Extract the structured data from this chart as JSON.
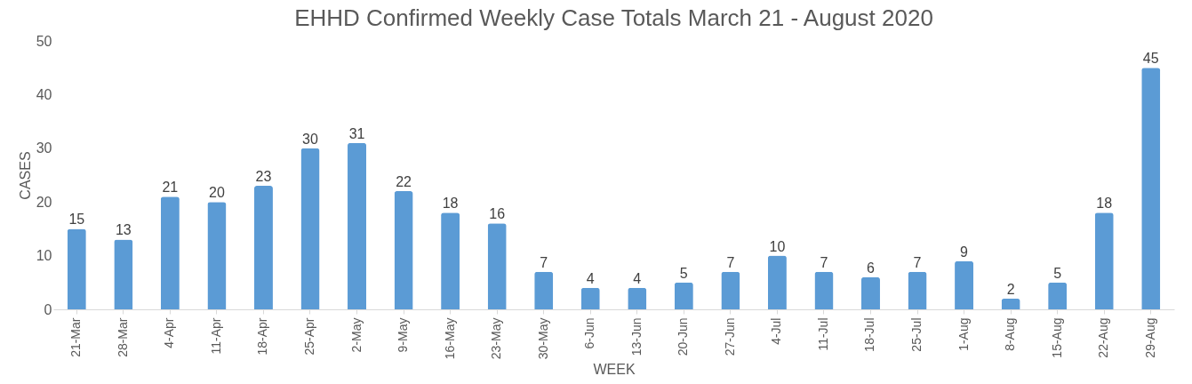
{
  "chart_data": {
    "type": "bar",
    "title": "EHHD Confirmed Weekly Case Totals March 21 - August 2020",
    "xlabel": "WEEK",
    "ylabel": "CASES",
    "categories": [
      "21-Mar",
      "28-Mar",
      "4-Apr",
      "11-Apr",
      "18-Apr",
      "25-Apr",
      "2-May",
      "9-May",
      "16-May",
      "23-May",
      "30-May",
      "6-Jun",
      "13-Jun",
      "20-Jun",
      "27-Jun",
      "4-Jul",
      "11-Jul",
      "18-Jul",
      "25-Jul",
      "1-Aug",
      "8-Aug",
      "15-Aug",
      "22-Aug",
      "29-Aug"
    ],
    "values": [
      15,
      13,
      21,
      20,
      23,
      30,
      31,
      22,
      18,
      16,
      7,
      4,
      4,
      5,
      7,
      10,
      7,
      6,
      7,
      9,
      2,
      5,
      18,
      45
    ],
    "color": "#5b9bd5",
    "ylim": [
      0,
      50
    ],
    "yticks": [
      0,
      10,
      20,
      30,
      40,
      50
    ],
    "grid": false,
    "data_labels": true
  }
}
